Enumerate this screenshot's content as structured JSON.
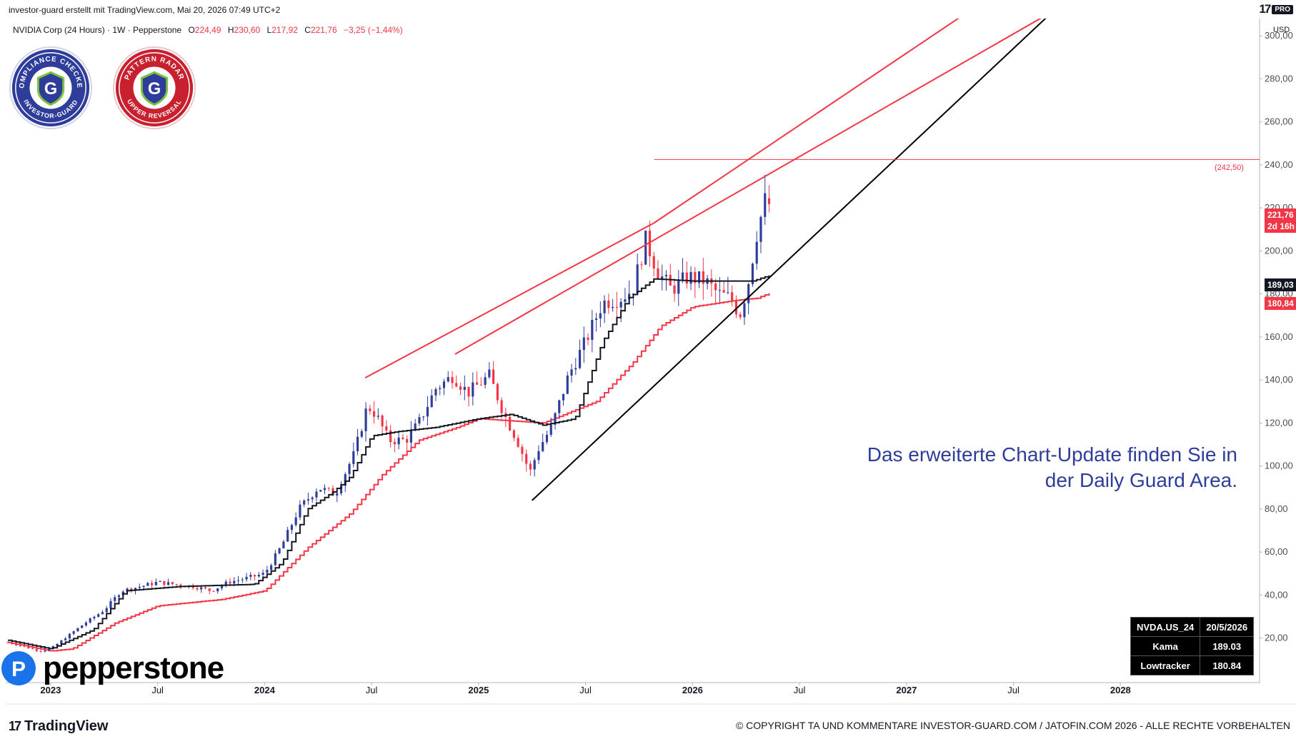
{
  "header": {
    "caption": "investor-guard erstellt mit TradingView.com, Mai 20, 2026 07:49 UTC+2",
    "tv_mark": "17",
    "pro_label": "PRO"
  },
  "legend": {
    "symbol": "NVIDIA Corp (24 Hours) · 1W · Pepperstone",
    "o_key": "O",
    "o_val": "224,49",
    "h_key": "H",
    "h_val": "230,60",
    "l_key": "L",
    "l_val": "217,92",
    "c_key": "C",
    "c_val": "221,76",
    "change": "−3,25 (−1,44%)"
  },
  "axis": {
    "currency": "USD",
    "last_price_tag": "221,76",
    "countdown_tag": "2d 16h",
    "kama_tag": "189,03",
    "lowtracker_tag": "180,84",
    "hline_label": "(242,50)"
  },
  "note": {
    "line1": "Das erweiterte Chart-Update finden Sie in",
    "line2": "der Daily Guard Area."
  },
  "info_table": {
    "symbol": "NVDA.US_24",
    "date": "20/5/2026",
    "kama_label": "Kama",
    "kama_value": "189.03",
    "low_label": "Lowtracker",
    "low_value": "180.84"
  },
  "badges": {
    "left": {
      "top_text": "COMPLIANCE CHECKED",
      "bottom_text": "INVESTOR-GUARD",
      "letter": "G",
      "color": "#2e3d9a"
    },
    "right": {
      "top_text": "PATTERN RADAR",
      "bottom_text": "UPPER REVERSAL",
      "letter": "G",
      "color": "#c8202e"
    }
  },
  "footer": {
    "pepperstone": "pepperstone",
    "pepperstone_mark": "P",
    "tv_mark": "17",
    "tradingview": "TradingView",
    "copyright": "© COPYRIGHT TA UND KOMMENTARE INVESTOR-GUARD.COM / JATOFIN.COM 2026 - ALLE RECHTE VORBEHALTEN"
  },
  "colors": {
    "up": "#2e3d9a",
    "down": "#f23645",
    "kama": "#131722",
    "lowtracker": "#f23645",
    "trend_red": "#f23645",
    "trend_black": "#000000"
  },
  "chart_data": {
    "type": "candlestick",
    "timeframe": "1W",
    "y_ticks": [
      20,
      40,
      60,
      80,
      100,
      120,
      140,
      160,
      180,
      200,
      220,
      240,
      260,
      280,
      300
    ],
    "y_tick_labels": [
      "20,00",
      "40,00",
      "60,00",
      "80,00",
      "100,00",
      "120,00",
      "140,00",
      "160,00",
      "180,00",
      "200,00",
      "220,00",
      "240,00",
      "260,00",
      "280,00",
      "300,00"
    ],
    "ylim": [
      0,
      308
    ],
    "x_ticks": [
      {
        "t": 2023.0,
        "label": "2023",
        "year": true
      },
      {
        "t": 2023.5,
        "label": "Jul",
        "year": false
      },
      {
        "t": 2024.0,
        "label": "2024",
        "year": true
      },
      {
        "t": 2024.5,
        "label": "Jul",
        "year": false
      },
      {
        "t": 2025.0,
        "label": "2025",
        "year": true
      },
      {
        "t": 2025.5,
        "label": "Jul",
        "year": false
      },
      {
        "t": 2026.0,
        "label": "2026",
        "year": true
      },
      {
        "t": 2026.5,
        "label": "Jul",
        "year": false
      },
      {
        "t": 2027.0,
        "label": "2027",
        "year": true
      },
      {
        "t": 2027.5,
        "label": "Jul",
        "year": false
      },
      {
        "t": 2028.0,
        "label": "2028",
        "year": true
      }
    ],
    "xlim": [
      2022.79,
      2028.65
    ],
    "price_anchors": [
      [
        2022.8,
        18
      ],
      [
        2022.95,
        14
      ],
      [
        2023.0,
        15
      ],
      [
        2023.08,
        21
      ],
      [
        2023.16,
        27
      ],
      [
        2023.25,
        33
      ],
      [
        2023.33,
        42
      ],
      [
        2023.42,
        44
      ],
      [
        2023.5,
        46
      ],
      [
        2023.58,
        45
      ],
      [
        2023.67,
        44
      ],
      [
        2023.75,
        42
      ],
      [
        2023.83,
        46
      ],
      [
        2023.92,
        48
      ],
      [
        2024.0,
        50
      ],
      [
        2024.08,
        63
      ],
      [
        2024.16,
        80
      ],
      [
        2024.25,
        90
      ],
      [
        2024.33,
        87
      ],
      [
        2024.42,
        106
      ],
      [
        2024.48,
        128
      ],
      [
        2024.52,
        124
      ],
      [
        2024.58,
        112
      ],
      [
        2024.66,
        112
      ],
      [
        2024.72,
        120
      ],
      [
        2024.8,
        136
      ],
      [
        2024.88,
        142
      ],
      [
        2024.95,
        134
      ],
      [
        2025.0,
        138
      ],
      [
        2025.05,
        142
      ],
      [
        2025.12,
        124
      ],
      [
        2025.18,
        112
      ],
      [
        2025.24,
        97
      ],
      [
        2025.28,
        108
      ],
      [
        2025.34,
        118
      ],
      [
        2025.42,
        142
      ],
      [
        2025.5,
        158
      ],
      [
        2025.58,
        176
      ],
      [
        2025.66,
        178
      ],
      [
        2025.72,
        182
      ],
      [
        2025.78,
        205
      ],
      [
        2025.84,
        190
      ],
      [
        2025.9,
        182
      ],
      [
        2025.98,
        188
      ],
      [
        2026.06,
        186
      ],
      [
        2026.12,
        180
      ],
      [
        2026.18,
        178
      ],
      [
        2026.22,
        170
      ],
      [
        2026.26,
        185
      ],
      [
        2026.3,
        208
      ],
      [
        2026.34,
        224
      ],
      [
        2026.37,
        221.76
      ]
    ],
    "kama_anchors": [
      [
        2022.8,
        19
      ],
      [
        2023.0,
        15
      ],
      [
        2023.2,
        24
      ],
      [
        2023.35,
        42
      ],
      [
        2023.6,
        44
      ],
      [
        2023.95,
        45
      ],
      [
        2024.08,
        55
      ],
      [
        2024.2,
        80
      ],
      [
        2024.32,
        88
      ],
      [
        2024.4,
        95
      ],
      [
        2024.5,
        114
      ],
      [
        2024.62,
        116
      ],
      [
        2024.8,
        118
      ],
      [
        2025.0,
        122
      ],
      [
        2025.15,
        124
      ],
      [
        2025.3,
        119
      ],
      [
        2025.45,
        122
      ],
      [
        2025.58,
        158
      ],
      [
        2025.7,
        178
      ],
      [
        2025.82,
        187
      ],
      [
        2026.0,
        186
      ],
      [
        2026.2,
        186
      ],
      [
        2026.28,
        186
      ],
      [
        2026.37,
        189.03
      ]
    ],
    "lowtracker_anchors": [
      [
        2022.8,
        18
      ],
      [
        2023.0,
        14
      ],
      [
        2023.1,
        15
      ],
      [
        2023.3,
        27
      ],
      [
        2023.5,
        35
      ],
      [
        2023.8,
        38
      ],
      [
        2024.0,
        42
      ],
      [
        2024.2,
        62
      ],
      [
        2024.4,
        78
      ],
      [
        2024.55,
        96
      ],
      [
        2024.72,
        112
      ],
      [
        2024.9,
        118
      ],
      [
        2025.0,
        122
      ],
      [
        2025.3,
        120
      ],
      [
        2025.55,
        130
      ],
      [
        2025.72,
        148
      ],
      [
        2025.85,
        165
      ],
      [
        2026.0,
        174
      ],
      [
        2026.2,
        177
      ],
      [
        2026.3,
        178
      ],
      [
        2026.37,
        180.84
      ]
    ],
    "trendlines": [
      {
        "color": "red",
        "from": [
          2024.47,
          141
        ],
        "to": [
          2025.82,
          213
        ]
      },
      {
        "color": "red",
        "from": [
          2025.82,
          213
        ],
        "to": [
          2027.39,
          318
        ]
      },
      {
        "color": "red",
        "from": [
          2024.89,
          152
        ],
        "to": [
          2027.8,
          318
        ]
      },
      {
        "color": "black",
        "from": [
          2025.25,
          84
        ],
        "to": [
          2027.67,
          310
        ]
      }
    ],
    "horizontal_line": {
      "value": 242.5,
      "from": 2025.82,
      "label": "(242,50)"
    },
    "last": {
      "open": 224.49,
      "high": 230.6,
      "low": 217.92,
      "close": 221.76,
      "change": -3.25,
      "change_pct": -1.44
    },
    "series": [
      {
        "name": "Kama",
        "last": 189.03
      },
      {
        "name": "Lowtracker",
        "last": 180.84
      }
    ]
  }
}
